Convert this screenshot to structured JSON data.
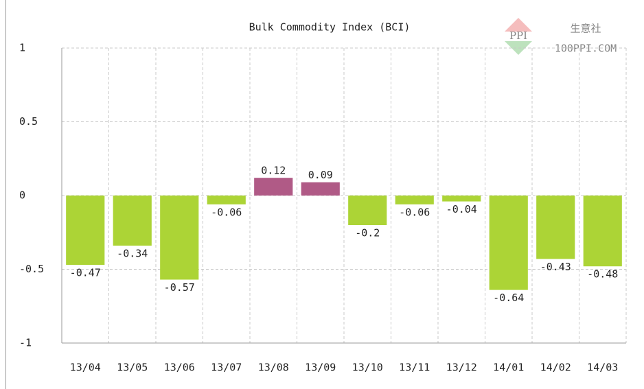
{
  "chart_data": {
    "type": "bar",
    "title": "Bulk Commodity Index (BCI)",
    "categories": [
      "13/04",
      "13/05",
      "13/06",
      "13/07",
      "13/08",
      "13/09",
      "13/10",
      "13/11",
      "13/12",
      "14/01",
      "14/02",
      "14/03"
    ],
    "values": [
      -0.47,
      -0.34,
      -0.57,
      -0.06,
      0.12,
      0.09,
      -0.2,
      -0.06,
      -0.04,
      -0.64,
      -0.43,
      -0.48
    ],
    "positive_color": "#b05a86",
    "negative_color": "#acd436",
    "ylim": [
      -1,
      1
    ],
    "yticks": [
      1,
      0.5,
      0,
      -0.5,
      -1
    ],
    "grid": true,
    "watermark": {
      "logo": "PPI",
      "name": "生意社",
      "site": "100PPI.COM"
    }
  }
}
